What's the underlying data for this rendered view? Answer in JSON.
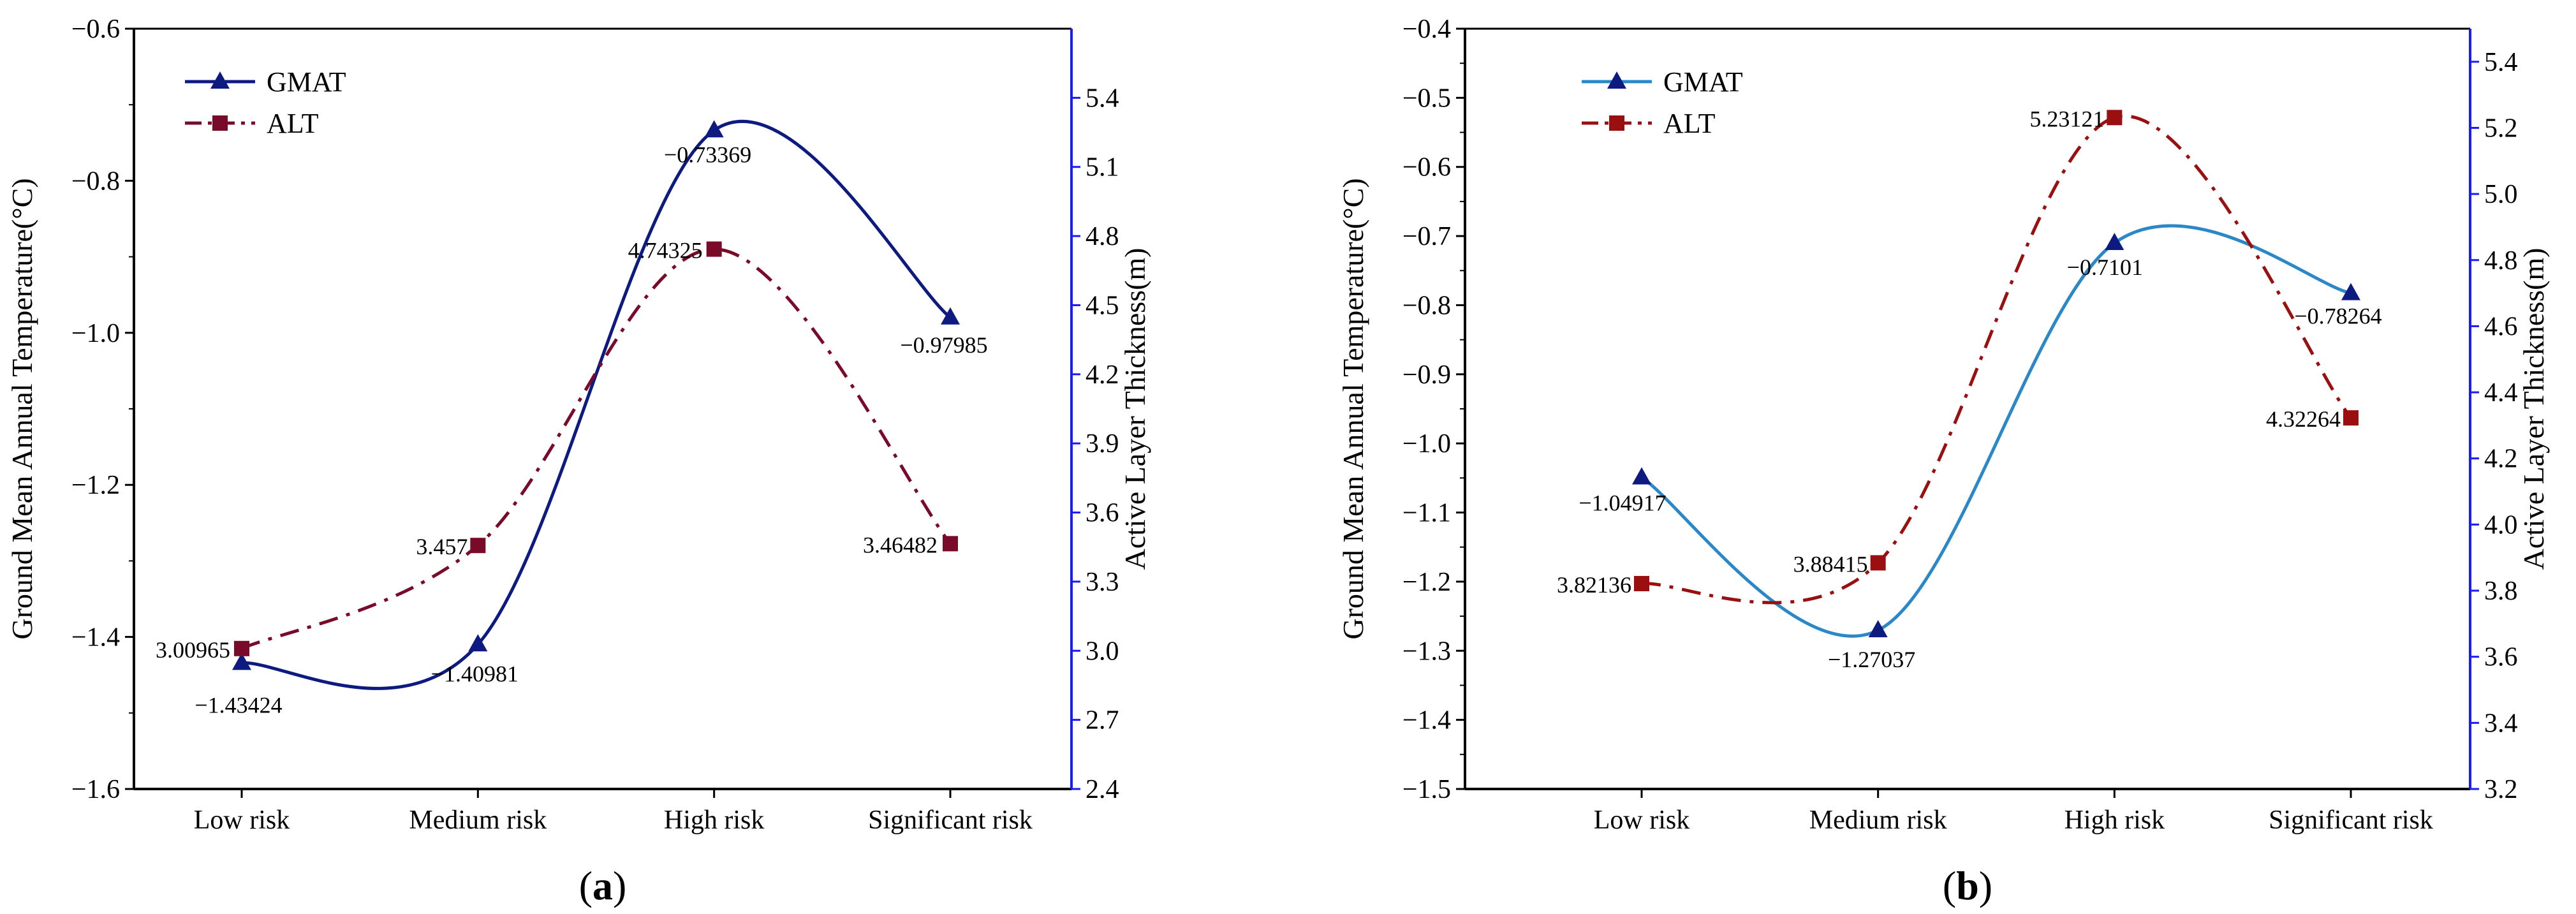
{
  "chart_data": [
    {
      "type": "line",
      "panel_label_open": "(",
      "panel_label_letter": "a",
      "panel_label_close": ")",
      "categories": [
        "Low risk",
        "Medium risk",
        "High risk",
        "Significant risk"
      ],
      "ylabel_left": "Ground Mean Annual Temperature(°C)",
      "ylabel_right": "Active Layer Thickness(m)",
      "ylim_left": [
        -1.6,
        -0.6
      ],
      "yticks_left": [
        "−1.6",
        "−1.4",
        "−1.2",
        "−1.0",
        "−0.8",
        "−0.6"
      ],
      "ylim_right": [
        2.4,
        5.7
      ],
      "yticks_right": [
        "2.4",
        "2.7",
        "3.0",
        "3.3",
        "3.6",
        "3.9",
        "4.2",
        "4.5",
        "4.8",
        "5.1",
        "5.4"
      ],
      "legend_position": "top-left",
      "series": [
        {
          "name": "GMAT",
          "axis": "left",
          "color": "#0d1a80",
          "marker": "triangle",
          "line_style": "solid",
          "values": [
            -1.43424,
            -1.40981,
            -0.73369,
            -0.97985
          ],
          "labels": [
            "−1.43424",
            "−1.40981",
            "−0.73369",
            "−0.97985"
          ]
        },
        {
          "name": "ALT",
          "axis": "right",
          "color": "#7a0a2a",
          "marker": "square",
          "line_style": "dash-dot",
          "values": [
            3.00965,
            3.457,
            4.74325,
            3.46482
          ],
          "labels": [
            "3.00965",
            "3.457",
            "4.74325",
            "3.46482"
          ]
        }
      ]
    },
    {
      "type": "line",
      "panel_label_open": "(",
      "panel_label_letter": "b",
      "panel_label_close": ")",
      "categories": [
        "Low risk",
        "Medium risk",
        "High risk",
        "Significant risk"
      ],
      "ylabel_left": "Ground Mean Annual Temperature(°C)",
      "ylabel_right": "Active Layer Thickness(m)",
      "ylim_left": [
        -1.5,
        -0.4
      ],
      "yticks_left": [
        "−1.5",
        "−1.4",
        "−1.3",
        "−1.2",
        "−1.1",
        "−1.0",
        "−0.9",
        "−0.8",
        "−0.7",
        "−0.6",
        "−0.5",
        "−0.4"
      ],
      "ylim_right": [
        3.2,
        5.5
      ],
      "yticks_right": [
        "3.2",
        "3.4",
        "3.6",
        "3.8",
        "4.0",
        "4.2",
        "4.4",
        "4.6",
        "4.8",
        "5.0",
        "5.2",
        "5.4"
      ],
      "legend_position": "top-left",
      "series": [
        {
          "name": "GMAT",
          "axis": "left",
          "color": "#2a88c8",
          "marker": "triangle",
          "marker_color": "#0d1a80",
          "line_style": "solid",
          "values": [
            -1.04917,
            -1.27037,
            -0.7101,
            -0.78264
          ],
          "labels": [
            "−1.04917",
            "−1.27037",
            "−0.7101",
            "−0.78264"
          ]
        },
        {
          "name": "ALT",
          "axis": "right",
          "color": "#9a1010",
          "marker": "square",
          "line_style": "dash-dot",
          "values": [
            3.82136,
            3.88415,
            5.23121,
            4.32264
          ],
          "labels": [
            "3.82136",
            "3.88415",
            "5.23121",
            "4.32264"
          ]
        }
      ]
    }
  ],
  "colors": {
    "right_axis": "#1a1aff",
    "left_axis": "#000000"
  }
}
